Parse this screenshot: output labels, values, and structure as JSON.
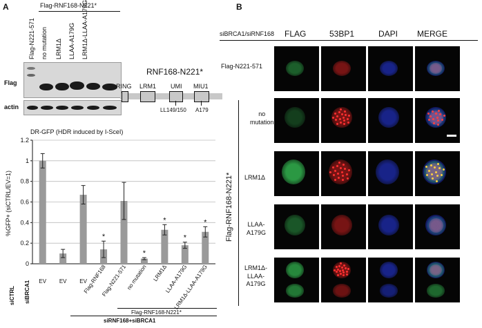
{
  "panelA": {
    "letter": "A",
    "blot": {
      "header_group": "Flag-RNF168-N221*",
      "lanes": [
        "Flag-N221-571",
        "no mutation",
        "LRM1Δ",
        "LLAA-A179G",
        "LRM1Δ-LLAA-A179G"
      ],
      "row_labels": [
        "Flag",
        "actin"
      ]
    },
    "schematic": {
      "title": "RNF168-N221*",
      "domains": [
        "RING",
        "LRM1",
        "UMI",
        "MIU1"
      ],
      "mutations": [
        "LL149/150",
        "A179"
      ]
    },
    "chart_title": "DR-GFP (HDR induced by I-SceI)",
    "chart_data": {
      "type": "bar",
      "ylabel": "%GFP+ (siCTRL/EV=1)",
      "ylim": [
        0,
        1.2
      ],
      "yticks": [
        "0",
        "0.2",
        "0.4",
        "0.6",
        "0.8",
        "1",
        "1.2"
      ],
      "categories": [
        "EV",
        "EV",
        "EV",
        "Flag-RNF168",
        "Flag-N221-571",
        "no mutation",
        "LRM1Δ",
        "LLAA-A179G",
        "LRM1Δ-LLAA-A179G"
      ],
      "values": [
        1.0,
        0.1,
        0.67,
        0.14,
        0.61,
        0.05,
        0.33,
        0.18,
        0.31
      ],
      "errors": [
        0.07,
        0.04,
        0.09,
        0.08,
        0.18,
        0.01,
        0.05,
        0.03,
        0.05
      ],
      "significant": [
        false,
        false,
        false,
        true,
        false,
        true,
        true,
        true,
        true
      ],
      "star": "*",
      "bar_color": "#9a9a9a",
      "groups": [
        "siCTRL",
        "siBRCA1",
        "siRNF168+siBRCA1"
      ],
      "sub_group": "Flag-RNF168-N221*"
    }
  },
  "panelB": {
    "letter": "B",
    "condition": "siBRCA1/siRNF168",
    "columns": [
      "FLAG",
      "53BP1",
      "DAPI",
      "MERGE"
    ],
    "row_labels": [
      "Flag-N221-571",
      "no\nmutation",
      "LRM1Δ",
      "LLAA-\nA179G",
      "LRM1Δ-\nLLAA-\nA179G"
    ],
    "side_label": "Flag-RNF168-N221*",
    "channel_colors": {
      "flag": "#2fa84a",
      "bp1": "#d42020",
      "dapi": "#2030c0"
    }
  }
}
